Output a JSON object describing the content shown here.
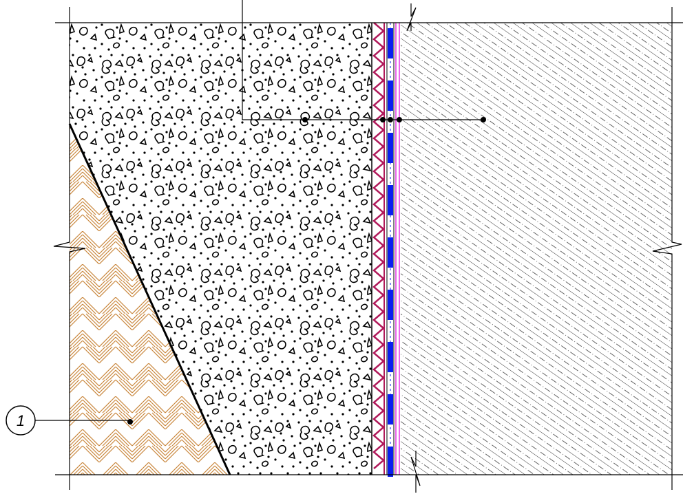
{
  "diagram": {
    "callouts": [
      {
        "id": "1",
        "label": "1"
      }
    ],
    "colors": {
      "line": "#000000",
      "soil_hatch": "#c8853a",
      "membrane": "#b0195a",
      "insulation": "#0a1ef0",
      "film": "#e000e0",
      "wall_hatch": "#000000"
    },
    "layers": [
      "soil",
      "gravel-fill",
      "drainage-membrane",
      "insulation",
      "film",
      "concrete-wall"
    ]
  }
}
